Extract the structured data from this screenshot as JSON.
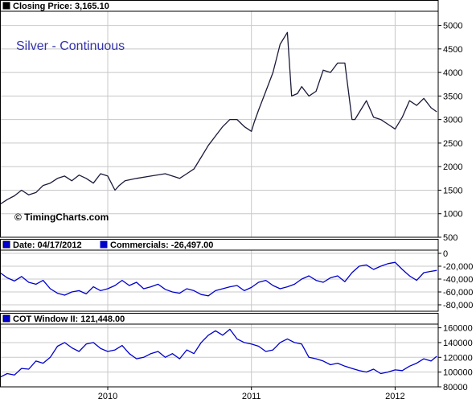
{
  "chart_data": [
    {
      "type": "line",
      "panel": "price",
      "title": "Silver - Continuous",
      "copyright": "© TimingCharts.com",
      "legend_label": "Closing Price: 3,165.10",
      "legend_swatch_color": "#000000",
      "ylim": [
        500,
        5300
      ],
      "yticks": [
        500,
        1000,
        1500,
        2000,
        2500,
        3000,
        3500,
        4000,
        4500,
        5000
      ],
      "ytick_labels": [
        "500",
        "1000",
        "1500",
        "2000",
        "2500",
        "3000",
        "3500",
        "4000",
        "4500",
        "5000"
      ],
      "grid": true,
      "line_color": "#1a1a3a",
      "series": [
        {
          "x": [
            2009.25,
            2009.3,
            2009.35,
            2009.4,
            2009.45,
            2009.5,
            2009.55,
            2009.6,
            2009.65,
            2009.7,
            2009.75,
            2009.8,
            2009.85,
            2009.9,
            2009.95,
            2010.0,
            2010.05,
            2010.08,
            2010.12,
            2010.2,
            2010.3,
            2010.4,
            2010.5,
            2010.55,
            2010.6,
            2010.65,
            2010.7,
            2010.75,
            2010.8,
            2010.85,
            2010.9,
            2010.95,
            2011.0,
            2011.02,
            2011.05,
            2011.1,
            2011.15,
            2011.2,
            2011.25,
            2011.28,
            2011.32,
            2011.35,
            2011.4,
            2011.45,
            2011.5,
            2011.55,
            2011.6,
            2011.65,
            2011.7,
            2011.72,
            2011.75,
            2011.8,
            2011.85,
            2011.9,
            2011.95,
            2012.0,
            2012.05,
            2012.1,
            2012.15,
            2012.2,
            2012.25,
            2012.29
          ],
          "y": [
            1200,
            1300,
            1380,
            1500,
            1400,
            1450,
            1600,
            1650,
            1750,
            1800,
            1700,
            1820,
            1750,
            1650,
            1850,
            1800,
            1500,
            1600,
            1700,
            1750,
            1800,
            1850,
            1750,
            1850,
            1950,
            2200,
            2450,
            2650,
            2850,
            3000,
            3000,
            2850,
            2750,
            2950,
            3200,
            3600,
            4000,
            4600,
            4850,
            3500,
            3550,
            3700,
            3500,
            3600,
            4050,
            4000,
            4200,
            4200,
            3000,
            3000,
            3150,
            3400,
            3050,
            3000,
            2900,
            2800,
            3050,
            3400,
            3300,
            3450,
            3250,
            3165
          ]
        }
      ]
    },
    {
      "type": "line",
      "panel": "commercials",
      "legend_label": "Date: 04/17/2012",
      "legend_label2": "Commercials: -26,497.00",
      "legend_swatch_color": "#0000cc",
      "ylim": [
        -90000,
        5000
      ],
      "yticks": [
        0,
        -20000,
        -40000,
        -60000,
        -80000
      ],
      "ytick_labels": [
        "0",
        "-20,000",
        "-40,000",
        "-60,000",
        "-80,000"
      ],
      "grid": true,
      "line_color": "#0000cc",
      "series": [
        {
          "x": [
            2009.25,
            2009.3,
            2009.35,
            2009.4,
            2009.45,
            2009.5,
            2009.55,
            2009.6,
            2009.65,
            2009.7,
            2009.75,
            2009.8,
            2009.85,
            2009.9,
            2009.95,
            2010.0,
            2010.05,
            2010.1,
            2010.15,
            2010.2,
            2010.25,
            2010.3,
            2010.35,
            2010.4,
            2010.45,
            2010.5,
            2010.55,
            2010.6,
            2010.65,
            2010.7,
            2010.75,
            2010.8,
            2010.85,
            2010.9,
            2010.95,
            2011.0,
            2011.05,
            2011.1,
            2011.15,
            2011.2,
            2011.25,
            2011.3,
            2011.35,
            2011.4,
            2011.45,
            2011.5,
            2011.55,
            2011.6,
            2011.65,
            2011.7,
            2011.75,
            2011.8,
            2011.85,
            2011.9,
            2011.95,
            2012.0,
            2012.05,
            2012.1,
            2012.15,
            2012.2,
            2012.25,
            2012.29
          ],
          "y": [
            -30000,
            -38000,
            -43000,
            -36000,
            -45000,
            -48000,
            -42000,
            -55000,
            -62000,
            -65000,
            -60000,
            -58000,
            -63000,
            -52000,
            -58000,
            -55000,
            -50000,
            -42000,
            -50000,
            -45000,
            -55000,
            -52000,
            -48000,
            -56000,
            -60000,
            -62000,
            -55000,
            -58000,
            -64000,
            -66000,
            -58000,
            -55000,
            -52000,
            -50000,
            -58000,
            -53000,
            -45000,
            -42000,
            -50000,
            -55000,
            -52000,
            -48000,
            -40000,
            -35000,
            -42000,
            -45000,
            -38000,
            -35000,
            -44000,
            -30000,
            -20000,
            -18000,
            -25000,
            -20000,
            -16000,
            -14000,
            -25000,
            -35000,
            -42000,
            -30000,
            -28000,
            -26497
          ]
        }
      ]
    },
    {
      "type": "line",
      "panel": "cot-window",
      "legend_label": "COT Window II: 121,448.00",
      "legend_swatch_color": "#0000cc",
      "ylim": [
        80000,
        165000
      ],
      "yticks": [
        80000,
        100000,
        120000,
        140000,
        160000
      ],
      "ytick_labels": [
        "80000",
        "100000",
        "120000",
        "140000",
        "160000"
      ],
      "grid": true,
      "line_color": "#0000cc",
      "xticks": [
        2010.0,
        2011.0,
        2012.0
      ],
      "xtick_labels": [
        "2010",
        "2011",
        "2012"
      ],
      "series": [
        {
          "x": [
            2009.25,
            2009.3,
            2009.35,
            2009.4,
            2009.45,
            2009.5,
            2009.55,
            2009.6,
            2009.65,
            2009.7,
            2009.75,
            2009.8,
            2009.85,
            2009.9,
            2009.95,
            2010.0,
            2010.05,
            2010.1,
            2010.15,
            2010.2,
            2010.25,
            2010.3,
            2010.35,
            2010.4,
            2010.45,
            2010.5,
            2010.55,
            2010.6,
            2010.65,
            2010.7,
            2010.75,
            2010.8,
            2010.85,
            2010.9,
            2010.95,
            2011.0,
            2011.05,
            2011.1,
            2011.15,
            2011.2,
            2011.25,
            2011.3,
            2011.35,
            2011.4,
            2011.45,
            2011.5,
            2011.55,
            2011.6,
            2011.65,
            2011.7,
            2011.75,
            2011.8,
            2011.85,
            2011.9,
            2011.95,
            2012.0,
            2012.05,
            2012.1,
            2012.15,
            2012.2,
            2012.25,
            2012.29
          ],
          "y": [
            93000,
            98000,
            96000,
            105000,
            104000,
            115000,
            112000,
            120000,
            135000,
            140000,
            133000,
            128000,
            138000,
            140000,
            132000,
            128000,
            130000,
            136000,
            125000,
            118000,
            120000,
            125000,
            128000,
            120000,
            125000,
            118000,
            130000,
            125000,
            140000,
            150000,
            156000,
            150000,
            158000,
            145000,
            140000,
            138000,
            135000,
            128000,
            130000,
            140000,
            145000,
            140000,
            138000,
            120000,
            118000,
            115000,
            110000,
            112000,
            108000,
            105000,
            102000,
            100000,
            104000,
            98000,
            100000,
            103000,
            102000,
            108000,
            112000,
            118000,
            115000,
            121448
          ]
        }
      ]
    }
  ]
}
